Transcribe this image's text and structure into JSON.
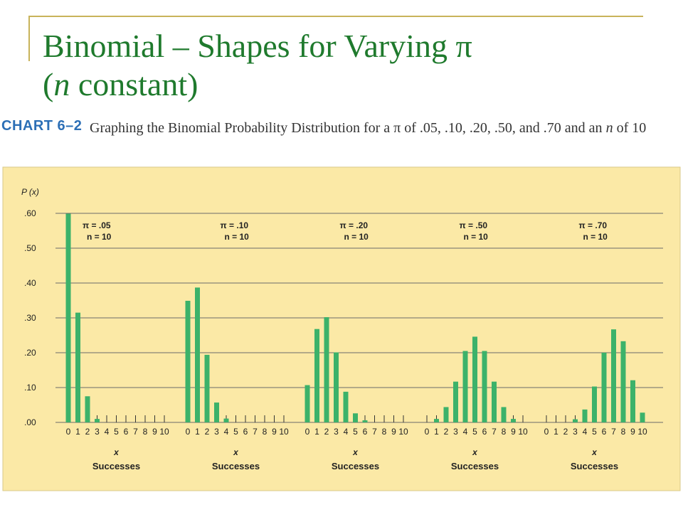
{
  "slide": {
    "title_main": "Binomial – Shapes for Varying π",
    "title_line2_open": "(",
    "title_line2_italic": "n",
    "title_line2_rest": " constant)"
  },
  "chart_header": {
    "label": "CHART 6–2",
    "caption_part1": "Graphing the Binomial Probability Distribution for a π of .05, .10, .20, .50, and .70 and an ",
    "caption_italic": "n",
    "caption_part2": " of 10"
  },
  "colors": {
    "title": "#1f7a2d",
    "chart_label": "#2c6fb6",
    "panel_background": "#fbe9a6",
    "bar": "#3cb26a",
    "gridline": "#6b6b6b"
  },
  "chart_data": {
    "type": "bar",
    "ylabel": "P (x)",
    "yticks": [
      ".00",
      ".10",
      ".20",
      ".30",
      ".40",
      ".50",
      ".60"
    ],
    "ylim": [
      0,
      0.6
    ],
    "grid": true,
    "categories": [
      "0",
      "1",
      "2",
      "3",
      "4",
      "5",
      "6",
      "7",
      "8",
      "9",
      "10"
    ],
    "panels": [
      {
        "pi_label": "π = .05",
        "n_label": "n = 10",
        "xlabel": "x",
        "xsublabel": "Successes",
        "values": [
          0.599,
          0.315,
          0.075,
          0.01,
          0.001,
          0,
          0,
          0,
          0,
          0,
          0
        ]
      },
      {
        "pi_label": "π = .10",
        "n_label": "n = 10",
        "xlabel": "x",
        "xsublabel": "Successes",
        "values": [
          0.349,
          0.387,
          0.194,
          0.057,
          0.011,
          0.001,
          0,
          0,
          0,
          0,
          0
        ]
      },
      {
        "pi_label": "π = .20",
        "n_label": "n = 10",
        "xlabel": "x",
        "xsublabel": "Successes",
        "values": [
          0.107,
          0.268,
          0.302,
          0.201,
          0.088,
          0.026,
          0.006,
          0.001,
          0,
          0,
          0
        ]
      },
      {
        "pi_label": "π = .50",
        "n_label": "n = 10",
        "xlabel": "x",
        "xsublabel": "Successes",
        "values": [
          0.001,
          0.01,
          0.044,
          0.117,
          0.205,
          0.246,
          0.205,
          0.117,
          0.044,
          0.01,
          0.001
        ]
      },
      {
        "pi_label": "π = .70",
        "n_label": "n = 10",
        "xlabel": "x",
        "xsublabel": "Successes",
        "values": [
          0,
          0.0,
          0.001,
          0.009,
          0.037,
          0.103,
          0.2,
          0.267,
          0.233,
          0.121,
          0.028
        ]
      }
    ]
  }
}
